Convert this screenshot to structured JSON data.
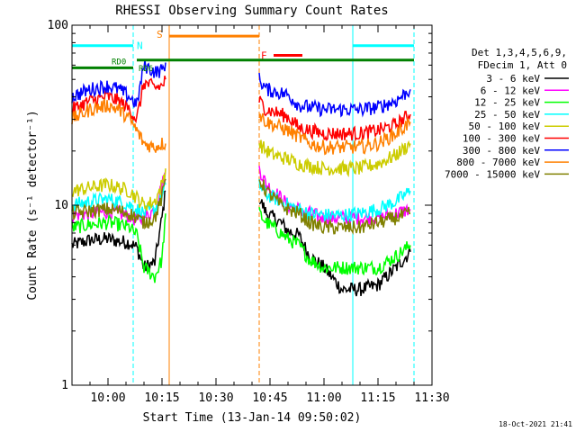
{
  "chart_data": {
    "type": "line",
    "title": "RHESSI Observing Summary Count Rates",
    "xlabel": "Start Time (13-Jan-14 09:50:02)",
    "ylabel": "Count Rate (s⁻¹ detector⁻¹)",
    "ylog": true,
    "ylim": [
      1,
      100
    ],
    "xlim": [
      "09:50",
      "11:30"
    ],
    "x_ticks": [
      "10:00",
      "10:15",
      "10:30",
      "10:45",
      "11:00",
      "11:15",
      "11:30"
    ],
    "y_ticks": [
      "1",
      "10",
      "100"
    ],
    "legend_header": [
      "Det 1,3,4,5,6,9,",
      "FDecim 1, Att 0"
    ],
    "legend_placement": "right",
    "series": [
      {
        "name": "3 - 6 keV",
        "color": "#000000",
        "segments": [
          {
            "x": [
              "09:50",
              "09:55",
              "10:00",
              "10:03",
              "10:06",
              "10:08",
              "10:10",
              "10:13",
              "10:15",
              "10:16"
            ],
            "y": [
              6,
              6.4,
              6.5,
              6.3,
              6.2,
              5.8,
              4.5,
              4.8,
              8.5,
              12
            ]
          },
          {
            "x": [
              "10:42",
              "10:44",
              "10:46",
              "10:48",
              "10:50",
              "10:53",
              "10:56",
              "11:00",
              "11:05",
              "11:10",
              "11:15",
              "11:20",
              "11:24"
            ],
            "y": [
              11,
              9,
              8.5,
              8,
              7.2,
              6.8,
              5.2,
              4.5,
              3.4,
              3.4,
              3.6,
              4.5,
              5.5
            ]
          }
        ]
      },
      {
        "name": "6 - 12 keV",
        "color": "#ff00ff",
        "segments": [
          {
            "x": [
              "09:50",
              "09:55",
              "10:00",
              "10:03",
              "10:06",
              "10:08",
              "10:10",
              "10:13",
              "10:15",
              "10:16"
            ],
            "y": [
              8.8,
              9,
              9.2,
              9,
              8.7,
              8.2,
              8.5,
              9.5,
              13,
              15
            ]
          },
          {
            "x": [
              "10:42",
              "10:44",
              "10:46",
              "10:48",
              "10:50",
              "10:53",
              "10:56",
              "11:00",
              "11:05",
              "11:10",
              "11:15",
              "11:20",
              "11:24"
            ],
            "y": [
              16,
              13,
              12,
              11,
              10,
              9.5,
              9,
              8.5,
              8.5,
              8.5,
              8.5,
              9,
              9.5
            ]
          }
        ]
      },
      {
        "name": "12 - 25 keV",
        "color": "#00ff00",
        "segments": [
          {
            "x": [
              "09:50",
              "09:55",
              "10:00",
              "10:03",
              "10:06",
              "10:08",
              "10:10",
              "10:13",
              "10:15",
              "10:16"
            ],
            "y": [
              7.5,
              7.8,
              8,
              7.8,
              7.5,
              6.8,
              4.5,
              4,
              5,
              9
            ]
          },
          {
            "x": [
              "10:42",
              "10:44",
              "10:46",
              "10:48",
              "10:50",
              "10:53",
              "10:56",
              "11:00",
              "11:05",
              "11:10",
              "11:15",
              "11:20",
              "11:24"
            ],
            "y": [
              9,
              8,
              7.5,
              7,
              6.5,
              6,
              5,
              4.5,
              4.5,
              4.5,
              4.5,
              5.2,
              6
            ]
          }
        ]
      },
      {
        "name": "25 - 50 keV",
        "color": "#00ffff",
        "segments": [
          {
            "x": [
              "09:50",
              "09:55",
              "10:00",
              "10:03",
              "10:06",
              "10:08",
              "10:10",
              "10:13",
              "10:15",
              "10:16"
            ],
            "y": [
              10,
              10.5,
              10.8,
              10.5,
              10,
              9.5,
              9,
              9.5,
              11,
              13
            ]
          },
          {
            "x": [
              "10:42",
              "10:44",
              "10:46",
              "10:48",
              "10:50",
              "10:53",
              "10:56",
              "11:00",
              "11:05",
              "11:10",
              "11:15",
              "11:20",
              "11:24"
            ],
            "y": [
              13,
              11.5,
              11,
              10.5,
              10,
              9.5,
              9,
              8.8,
              8.8,
              9,
              9.5,
              10.5,
              12
            ]
          }
        ]
      },
      {
        "name": "50 - 100 keV",
        "color": "#cccc00",
        "segments": [
          {
            "x": [
              "09:50",
              "09:55",
              "10:00",
              "10:03",
              "10:06",
              "10:08",
              "10:10",
              "10:13",
              "10:15",
              "10:16"
            ],
            "y": [
              12,
              12.5,
              13,
              12.5,
              12,
              11,
              10,
              10.5,
              13,
              16
            ]
          },
          {
            "x": [
              "10:42",
              "10:44",
              "10:46",
              "10:48",
              "10:50",
              "10:53",
              "10:56",
              "11:00",
              "11:05",
              "11:10",
              "11:15",
              "11:20",
              "11:24"
            ],
            "y": [
              22,
              20,
              19,
              18.5,
              18,
              17,
              16.5,
              16,
              16,
              16,
              17,
              19,
              22
            ]
          }
        ]
      },
      {
        "name": "100 - 300 keV",
        "color": "#ff0000",
        "segments": [
          {
            "x": [
              "09:50",
              "09:55",
              "10:00",
              "10:03",
              "10:06",
              "10:08",
              "10:10",
              "10:13",
              "10:15",
              "10:16"
            ],
            "y": [
              34,
              38,
              40,
              38,
              34,
              30,
              48,
              45,
              46,
              50
            ]
          },
          {
            "x": [
              "10:42",
              "10:44",
              "10:46",
              "10:48",
              "10:50",
              "10:53",
              "10:56",
              "11:00",
              "11:05",
              "11:10",
              "11:15",
              "11:20",
              "11:24"
            ],
            "y": [
              38,
              34,
              33,
              32,
              31,
              27,
              26,
              25,
              25,
              25,
              26,
              28,
              32
            ]
          }
        ]
      },
      {
        "name": "300 - 800 keV",
        "color": "#0000ff",
        "segments": [
          {
            "x": [
              "09:50",
              "09:55",
              "10:00",
              "10:03",
              "10:06",
              "10:08",
              "10:10",
              "10:13",
              "10:15",
              "10:16"
            ],
            "y": [
              40,
              44,
              46,
              44,
              40,
              36,
              60,
              55,
              56,
              62
            ]
          },
          {
            "x": [
              "10:42",
              "10:44",
              "10:46",
              "10:48",
              "10:50",
              "10:53",
              "10:56",
              "11:00",
              "11:05",
              "11:10",
              "11:15",
              "11:20",
              "11:24"
            ],
            "y": [
              50,
              44,
              43,
              42,
              41,
              36,
              35,
              34,
              34,
              34,
              35,
              38,
              44
            ]
          }
        ]
      },
      {
        "name": "800 - 7000 keV",
        "color": "#ff8000",
        "segments": [
          {
            "x": [
              "09:50",
              "09:55",
              "10:00",
              "10:03",
              "10:06",
              "10:08",
              "10:10",
              "10:13",
              "10:15",
              "10:16"
            ],
            "y": [
              30,
              34,
              36,
              34,
              30,
              26,
              22,
              21,
              22,
              22
            ]
          },
          {
            "x": [
              "10:42",
              "10:44",
              "10:46",
              "10:48",
              "10:50",
              "10:53",
              "10:56",
              "11:00",
              "11:05",
              "11:10",
              "11:15",
              "11:20",
              "11:24"
            ],
            "y": [
              32,
              29,
              28,
              27,
              26,
              24,
              22,
              21,
              21,
              21,
              22,
              25,
              29
            ]
          }
        ]
      },
      {
        "name": "7000 - 15000 keV",
        "color": "#808000",
        "segments": [
          {
            "x": [
              "09:50",
              "09:55",
              "10:00",
              "10:03",
              "10:06",
              "10:08",
              "10:10",
              "10:13",
              "10:15",
              "10:16"
            ],
            "y": [
              9,
              9.3,
              9.5,
              9.3,
              9,
              8.5,
              8,
              8.5,
              11,
              14
            ]
          },
          {
            "x": [
              "10:42",
              "10:44",
              "10:46",
              "10:48",
              "10:50",
              "10:53",
              "10:56",
              "11:00",
              "11:05",
              "11:10",
              "11:15",
              "11:20",
              "11:24"
            ],
            "y": [
              14,
              12,
              11,
              10,
              9.5,
              9,
              8,
              7.5,
              7.5,
              7.5,
              8,
              8.5,
              9
            ]
          }
        ]
      }
    ],
    "flag_bars": [
      {
        "label": "N",
        "color": "#00ffff",
        "x0": "09:50",
        "x1": "10:07",
        "y": 77
      },
      {
        "label": "",
        "color": "#00ffff",
        "x0": "11:08",
        "x1": "11:25",
        "y": 77
      },
      {
        "label": "S",
        "color": "#ff8000",
        "x0": "10:17",
        "x1": "10:42",
        "y": 87
      },
      {
        "label": "F",
        "color": "#ff0000",
        "x0": "10:46",
        "x1": "10:54",
        "y": 68
      },
      {
        "label": "RD0",
        "color": "#008000",
        "x0": "09:50",
        "x1": "10:07",
        "y": 58
      },
      {
        "label": "RD6",
        "color": "#008000",
        "x0": "10:08",
        "x1": "11:25",
        "y": 64
      }
    ],
    "vlines": [
      {
        "x": "10:07",
        "color": "#00ffff",
        "dashed": true
      },
      {
        "x": "10:17",
        "color": "#ff8000",
        "dashed": false
      },
      {
        "x": "10:42",
        "color": "#ff8000",
        "dashed": true
      },
      {
        "x": "11:08",
        "color": "#00ffff",
        "dashed": false
      },
      {
        "x": "11:25",
        "color": "#00ffff",
        "dashed": true
      }
    ],
    "timestamp": "18-Oct-2021 21:41"
  }
}
